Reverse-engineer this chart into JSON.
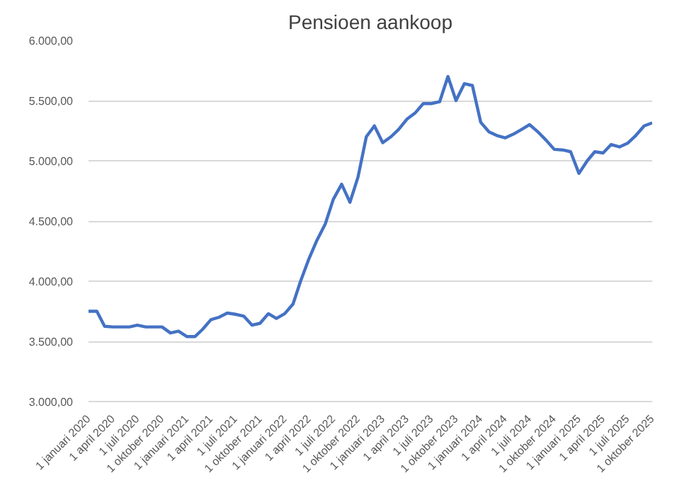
{
  "chart_data": {
    "type": "line",
    "title": "Pensioen aankoop",
    "x": [
      "2020-01",
      "2020-02",
      "2020-03",
      "2020-04",
      "2020-05",
      "2020-06",
      "2020-07",
      "2020-08",
      "2020-09",
      "2020-10",
      "2020-11",
      "2020-12",
      "2021-01",
      "2021-02",
      "2021-03",
      "2021-04",
      "2021-05",
      "2021-06",
      "2021-07",
      "2021-08",
      "2021-09",
      "2021-10",
      "2021-11",
      "2021-12",
      "2022-01",
      "2022-02",
      "2022-03",
      "2022-04",
      "2022-05",
      "2022-06",
      "2022-07",
      "2022-08",
      "2022-09",
      "2022-10",
      "2022-11",
      "2022-12",
      "2023-01",
      "2023-02",
      "2023-03",
      "2023-04",
      "2023-05",
      "2023-06",
      "2023-07",
      "2023-08",
      "2023-09",
      "2023-10",
      "2023-11",
      "2023-12",
      "2024-01",
      "2024-02",
      "2024-03",
      "2024-04",
      "2024-05",
      "2024-06",
      "2024-07",
      "2024-08",
      "2024-09",
      "2024-10",
      "2024-11",
      "2024-12",
      "2025-01",
      "2025-02",
      "2025-03",
      "2025-04",
      "2025-05",
      "2025-06",
      "2025-07",
      "2025-08",
      "2025-09",
      "2025-10"
    ],
    "series": [
      {
        "color": "#4472c4",
        "values": [
          3750,
          3750,
          3625,
          3620,
          3620,
          3620,
          3635,
          3620,
          3620,
          3620,
          3570,
          3585,
          3540,
          3540,
          3600,
          3680,
          3700,
          3735,
          3725,
          3710,
          3635,
          3650,
          3730,
          3690,
          3730,
          3810,
          4000,
          4185,
          4340,
          4475,
          4680,
          4805,
          4655,
          4865,
          5200,
          5290,
          5150,
          5200,
          5260,
          5345,
          5395,
          5475,
          5475,
          5490,
          5700,
          5500,
          5640,
          5625,
          5320,
          5240,
          5210,
          5190,
          5220,
          5260,
          5300,
          5240,
          5170,
          5095,
          5090,
          5075,
          4895,
          5000,
          5075,
          5065,
          5135,
          5115,
          5145,
          5210,
          5290,
          5315
        ]
      }
    ],
    "xlim": [
      "2020-01",
      "2025-10"
    ],
    "xticks": [
      {
        "value": "2020-01",
        "label": "1 januari 2020"
      },
      {
        "value": "2020-04",
        "label": "1 april 2020"
      },
      {
        "value": "2020-07",
        "label": "1 juli 2020"
      },
      {
        "value": "2020-10",
        "label": "1 oktober 2020"
      },
      {
        "value": "2021-01",
        "label": "1 januari 2021"
      },
      {
        "value": "2021-04",
        "label": "1 april 2021"
      },
      {
        "value": "2021-07",
        "label": "1 juli 2021"
      },
      {
        "value": "2021-10",
        "label": "1 oktober 2021"
      },
      {
        "value": "2022-01",
        "label": "1 januari 2022"
      },
      {
        "value": "2022-04",
        "label": "1 april 2022"
      },
      {
        "value": "2022-07",
        "label": "1 juli 2022"
      },
      {
        "value": "2022-10",
        "label": "1 oktober 2022"
      },
      {
        "value": "2023-01",
        "label": "1 januari 2023"
      },
      {
        "value": "2023-04",
        "label": "1 april 2023"
      },
      {
        "value": "2023-07",
        "label": "1 juli 2023"
      },
      {
        "value": "2023-10",
        "label": "1 oktober 2023"
      },
      {
        "value": "2024-01",
        "label": "1 januari 2024"
      },
      {
        "value": "2024-04",
        "label": "1 april 2024"
      },
      {
        "value": "2024-07",
        "label": "1 juli 2024"
      },
      {
        "value": "2024-10",
        "label": "1 oktober 2024"
      },
      {
        "value": "2025-01",
        "label": "1 januari 2025"
      },
      {
        "value": "2025-04",
        "label": "1 april 2025"
      },
      {
        "value": "2025-07",
        "label": "1 juli 2025"
      },
      {
        "value": "2025-10",
        "label": "1 oktober 2025"
      }
    ],
    "ylim": [
      3000,
      6000
    ],
    "yticks": [
      {
        "value": 3000,
        "label": "3.000,00"
      },
      {
        "value": 3500,
        "label": "3.500,00"
      },
      {
        "value": 4000,
        "label": "4.000,00"
      },
      {
        "value": 4500,
        "label": "4.500,00"
      },
      {
        "value": 5000,
        "label": "5.000,00"
      },
      {
        "value": 5500,
        "label": "5.500,00"
      },
      {
        "value": 6000,
        "label": "6.000,00"
      }
    ],
    "grid": "y",
    "marker": "none",
    "line_style": "solid"
  }
}
